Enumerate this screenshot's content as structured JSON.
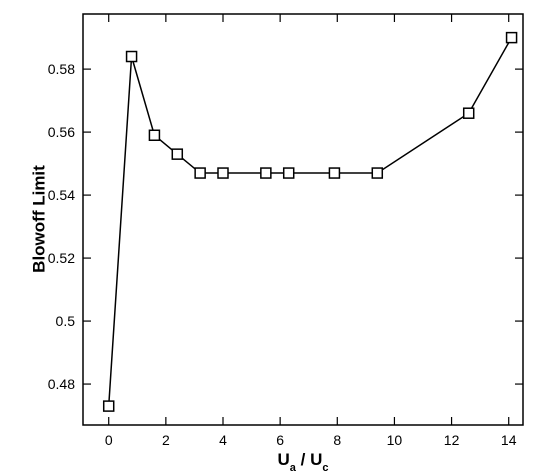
{
  "chart_data": {
    "type": "line",
    "y_label": "Blowoff Limit",
    "x_label": [
      {
        "text": "U"
      },
      {
        "text": "a",
        "sub": true
      },
      {
        "text": " / U"
      },
      {
        "text": "c",
        "sub": true
      }
    ],
    "x": [
      0,
      0.8,
      1.6,
      2.4,
      3.2,
      4.0,
      5.5,
      6.3,
      7.9,
      9.4,
      12.6,
      14.1
    ],
    "series": [
      {
        "color": "#000000",
        "marker": "square",
        "values": [
          0.473,
          0.584,
          0.559,
          0.553,
          0.547,
          0.547,
          0.547,
          0.547,
          0.547,
          0.547,
          0.566,
          0.59
        ]
      }
    ],
    "xlim": [
      -0.9,
      14.5
    ],
    "xticks": [
      0,
      2,
      4,
      6,
      8,
      10,
      12,
      14
    ],
    "ylim": [
      0.467,
      0.5975
    ],
    "yticks": [
      0.48,
      0.5,
      0.52,
      0.54,
      0.56,
      0.58
    ],
    "grid": false
  }
}
